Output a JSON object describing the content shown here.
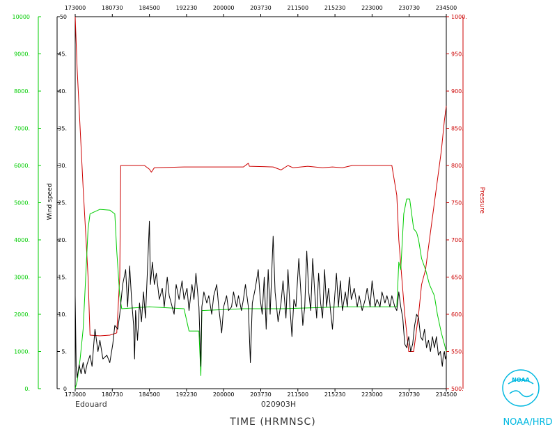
{
  "chart_data": {
    "type": "line",
    "storm": "Edouard",
    "flight_id": "020903H",
    "xlabel": "TIME (HRMNSC)",
    "x_ticks": [
      "173000",
      "180730",
      "184500",
      "192230",
      "200000",
      "203730",
      "211500",
      "215230",
      "223000",
      "230730",
      "234500"
    ],
    "xlim": [
      "17:30:00",
      "23:45:00"
    ],
    "axes": {
      "wind_speed": {
        "label": "Wind speed",
        "ylim": [
          0,
          50
        ],
        "ticks": [
          "0",
          "5.",
          "10.",
          "15.",
          "20.",
          "25.",
          "30.",
          "35.",
          "40.",
          "45.",
          "50"
        ],
        "color": "#000000"
      },
      "altitude": {
        "label": "",
        "ylim": [
          0,
          10000
        ],
        "ticks": [
          "0.",
          "1000.",
          "2000.",
          "3000.",
          "4000.",
          "5000.",
          "6000.",
          "7000.",
          "8000.",
          "9000.",
          "10000"
        ],
        "color": "#00cc00"
      },
      "pressure": {
        "label": "Pressure",
        "ylim": [
          500,
          1000
        ],
        "ticks": [
          "500.",
          "550.",
          "600.",
          "650.",
          "700.",
          "750.",
          "800.",
          "850.",
          "900.",
          "950.",
          "1000."
        ],
        "color": "#cc0000"
      }
    },
    "series": [
      {
        "axis": "pressure",
        "color": "#cc0000",
        "points": [
          [
            "17:30:00",
            1000
          ],
          [
            "17:32:00",
            930
          ],
          [
            "17:35:00",
            850
          ],
          [
            "17:38:00",
            770
          ],
          [
            "17:41:00",
            700
          ],
          [
            "17:43:00",
            650
          ],
          [
            "17:45:00",
            572
          ],
          [
            "17:55:00",
            571
          ],
          [
            "18:05:00",
            572
          ],
          [
            "18:12:00",
            575
          ],
          [
            "18:15:00",
            650
          ],
          [
            "18:16:00",
            800
          ],
          [
            "18:40:00",
            800
          ],
          [
            "18:45:00",
            795
          ],
          [
            "18:47:00",
            791
          ],
          [
            "18:50:00",
            797
          ],
          [
            "19:20:00",
            798
          ],
          [
            "20:20:00",
            798
          ],
          [
            "20:25:00",
            803
          ],
          [
            "20:26:00",
            799
          ],
          [
            "20:50:00",
            798
          ],
          [
            "20:58:00",
            794
          ],
          [
            "21:05:00",
            800
          ],
          [
            "21:10:00",
            797
          ],
          [
            "21:25:00",
            799
          ],
          [
            "21:40:00",
            797
          ],
          [
            "21:50:00",
            798
          ],
          [
            "22:00:00",
            797
          ],
          [
            "22:10:00",
            800
          ],
          [
            "22:50:00",
            800
          ],
          [
            "22:55:00",
            760
          ],
          [
            "22:57:00",
            700
          ],
          [
            "23:00:00",
            650
          ],
          [
            "23:03:00",
            600
          ],
          [
            "23:07:00",
            550
          ],
          [
            "23:12:00",
            550
          ],
          [
            "23:17:00",
            600
          ],
          [
            "23:20:00",
            640
          ],
          [
            "23:24:00",
            660
          ],
          [
            "23:28:00",
            700
          ],
          [
            "23:33:00",
            750
          ],
          [
            "23:36:00",
            780
          ],
          [
            "23:40:00",
            820
          ],
          [
            "23:43:00",
            860
          ],
          [
            "23:44:00",
            870
          ],
          [
            "23:45:00",
            880
          ]
        ]
      },
      {
        "axis": "altitude",
        "color": "#00cc00",
        "points": [
          [
            "17:30:00",
            0
          ],
          [
            "17:32:00",
            200
          ],
          [
            "17:35:00",
            800
          ],
          [
            "17:38:00",
            1600
          ],
          [
            "17:41:00",
            3200
          ],
          [
            "17:43:00",
            4300
          ],
          [
            "17:45:00",
            4700
          ],
          [
            "17:55:00",
            4820
          ],
          [
            "18:05:00",
            4800
          ],
          [
            "18:10:00",
            4700
          ],
          [
            "18:12:00",
            3700
          ],
          [
            "18:15:00",
            2500
          ],
          [
            "18:17:00",
            2150
          ],
          [
            "18:45:00",
            2200
          ],
          [
            "19:20:00",
            2150
          ],
          [
            "19:25:00",
            1550
          ],
          [
            "19:35:00",
            1550
          ],
          [
            "19:37:00",
            350
          ],
          [
            "19:38:00",
            2100
          ],
          [
            "20:20:00",
            2150
          ],
          [
            "21:00:00",
            2150
          ],
          [
            "22:00:00",
            2200
          ],
          [
            "22:55:00",
            2200
          ],
          [
            "22:57:00",
            3400
          ],
          [
            "22:59:00",
            3200
          ],
          [
            "23:02:00",
            4700
          ],
          [
            "23:05:00",
            5100
          ],
          [
            "23:08:00",
            5100
          ],
          [
            "23:12:00",
            4300
          ],
          [
            "23:15:00",
            4200
          ],
          [
            "23:17:00",
            4000
          ],
          [
            "23:20:00",
            3500
          ],
          [
            "23:24:00",
            3200
          ],
          [
            "23:28:00",
            2800
          ],
          [
            "23:33:00",
            2500
          ],
          [
            "23:36:00",
            2000
          ],
          [
            "23:40:00",
            1500
          ],
          [
            "23:43:00",
            1200
          ],
          [
            "23:45:00",
            1000
          ]
        ]
      },
      {
        "axis": "wind_speed",
        "color": "#000000",
        "points": [
          [
            "17:30:00",
            12.5
          ],
          [
            "17:31:00",
            3.0
          ],
          [
            "17:32:00",
            1.5
          ],
          [
            "17:34:00",
            3.2
          ],
          [
            "17:36:00",
            2.0
          ],
          [
            "17:38:00",
            3.5
          ],
          [
            "17:40:00",
            2.0
          ],
          [
            "17:42:00",
            3.3
          ],
          [
            "17:45:00",
            4.5
          ],
          [
            "17:47:00",
            3.0
          ],
          [
            "17:50:00",
            8.0
          ],
          [
            "17:53:00",
            5.0
          ],
          [
            "17:55:00",
            6.5
          ],
          [
            "17:58:00",
            4.0
          ],
          [
            "18:02:00",
            4.5
          ],
          [
            "18:05:00",
            3.5
          ],
          [
            "18:08:00",
            6.0
          ],
          [
            "18:10:00",
            8.5
          ],
          [
            "18:13:00",
            8.0
          ],
          [
            "18:15:00",
            10.0
          ],
          [
            "18:18:00",
            14.0
          ],
          [
            "18:21:00",
            16.0
          ],
          [
            "18:23:00",
            11.0
          ],
          [
            "18:25:00",
            16.5
          ],
          [
            "18:27:00",
            12.0
          ],
          [
            "18:29:00",
            8.5
          ],
          [
            "18:30:00",
            4.0
          ],
          [
            "18:31:00",
            10.5
          ],
          [
            "18:33:00",
            6.5
          ],
          [
            "18:35:00",
            11.5
          ],
          [
            "18:37:00",
            9.0
          ],
          [
            "18:39:00",
            13.0
          ],
          [
            "18:41:00",
            9.5
          ],
          [
            "18:43:00",
            16.0
          ],
          [
            "18:45:00",
            22.5
          ],
          [
            "18:46:00",
            14.0
          ],
          [
            "18:48:00",
            17.0
          ],
          [
            "18:50:00",
            14.0
          ],
          [
            "18:52:00",
            15.5
          ],
          [
            "18:55:00",
            12.0
          ],
          [
            "18:58:00",
            13.5
          ],
          [
            "19:00:00",
            11.0
          ],
          [
            "19:03:00",
            15.0
          ],
          [
            "19:05:00",
            12.5
          ],
          [
            "19:08:00",
            11.0
          ],
          [
            "19:10:00",
            10.0
          ],
          [
            "19:12:00",
            14.0
          ],
          [
            "19:15:00",
            12.0
          ],
          [
            "19:18:00",
            14.5
          ],
          [
            "19:20:00",
            12.0
          ],
          [
            "19:23:00",
            13.5
          ],
          [
            "19:25:00",
            10.5
          ],
          [
            "19:28:00",
            14.0
          ],
          [
            "19:30:00",
            12.0
          ],
          [
            "19:32:00",
            15.5
          ],
          [
            "19:35:00",
            11.0
          ],
          [
            "19:37:00",
            3.0
          ],
          [
            "19:38:00",
            11.0
          ],
          [
            "19:40:00",
            13.0
          ],
          [
            "19:43:00",
            11.5
          ],
          [
            "19:45:00",
            12.5
          ],
          [
            "19:48:00",
            10.0
          ],
          [
            "19:50:00",
            12.5
          ],
          [
            "19:53:00",
            14.0
          ],
          [
            "19:55:00",
            11.0
          ],
          [
            "19:58:00",
            7.5
          ],
          [
            "20:00:00",
            11.0
          ],
          [
            "20:03:00",
            12.5
          ],
          [
            "20:05:00",
            10.5
          ],
          [
            "20:08:00",
            11.0
          ],
          [
            "20:10:00",
            13.0
          ],
          [
            "20:13:00",
            11.0
          ],
          [
            "20:15:00",
            12.5
          ],
          [
            "20:18:00",
            10.5
          ],
          [
            "20:20:00",
            12.0
          ],
          [
            "20:22:00",
            14.0
          ],
          [
            "20:25:00",
            11.0
          ],
          [
            "20:27:00",
            3.5
          ],
          [
            "20:29:00",
            11.5
          ],
          [
            "20:32:00",
            13.5
          ],
          [
            "20:35:00",
            16.0
          ],
          [
            "20:37:00",
            12.0
          ],
          [
            "20:39:00",
            10.0
          ],
          [
            "20:41:00",
            15.0
          ],
          [
            "20:43:00",
            8.0
          ],
          [
            "20:45:00",
            16.0
          ],
          [
            "20:47:00",
            10.0
          ],
          [
            "20:50:00",
            20.5
          ],
          [
            "20:52:00",
            13.0
          ],
          [
            "20:55:00",
            9.0
          ],
          [
            "20:58:00",
            11.5
          ],
          [
            "21:00:00",
            14.5
          ],
          [
            "21:03:00",
            9.5
          ],
          [
            "21:05:00",
            16.0
          ],
          [
            "21:07:00",
            11.0
          ],
          [
            "21:09:00",
            7.0
          ],
          [
            "21:11:00",
            12.0
          ],
          [
            "21:13:00",
            11.0
          ],
          [
            "21:16:00",
            17.5
          ],
          [
            "21:18:00",
            13.0
          ],
          [
            "21:20:00",
            8.5
          ],
          [
            "21:22:00",
            11.0
          ],
          [
            "21:24:00",
            18.5
          ],
          [
            "21:26:00",
            13.0
          ],
          [
            "21:28:00",
            10.5
          ],
          [
            "21:30:00",
            17.5
          ],
          [
            "21:32:00",
            13.0
          ],
          [
            "21:34:00",
            9.5
          ],
          [
            "21:36:00",
            15.5
          ],
          [
            "21:38:00",
            11.5
          ],
          [
            "21:40:00",
            9.5
          ],
          [
            "21:42:00",
            16.0
          ],
          [
            "21:44:00",
            11.0
          ],
          [
            "21:46:00",
            13.5
          ],
          [
            "21:48:00",
            10.5
          ],
          [
            "21:50:00",
            8.0
          ],
          [
            "21:52:00",
            12.0
          ],
          [
            "21:54:00",
            15.5
          ],
          [
            "21:56:00",
            11.0
          ],
          [
            "21:58:00",
            14.5
          ],
          [
            "22:00:00",
            10.5
          ],
          [
            "22:03:00",
            13.0
          ],
          [
            "22:05:00",
            11.0
          ],
          [
            "22:07:00",
            15.0
          ],
          [
            "22:09:00",
            12.0
          ],
          [
            "22:12:00",
            13.5
          ],
          [
            "22:15:00",
            11.0
          ],
          [
            "22:17:00",
            12.5
          ],
          [
            "22:20:00",
            10.5
          ],
          [
            "22:23:00",
            12.0
          ],
          [
            "22:25:00",
            13.5
          ],
          [
            "22:28:00",
            11.0
          ],
          [
            "22:30:00",
            14.5
          ],
          [
            "22:33:00",
            11.0
          ],
          [
            "22:35:00",
            12.0
          ],
          [
            "22:38:00",
            11.0
          ],
          [
            "22:40:00",
            13.0
          ],
          [
            "22:43:00",
            11.5
          ],
          [
            "22:45:00",
            12.5
          ],
          [
            "22:48:00",
            11.0
          ],
          [
            "22:50:00",
            12.5
          ],
          [
            "22:53:00",
            11.0
          ],
          [
            "22:55:00",
            10.5
          ],
          [
            "22:57:00",
            13.0
          ],
          [
            "22:59:00",
            11.0
          ],
          [
            "23:01:00",
            9.5
          ],
          [
            "23:03:00",
            6.0
          ],
          [
            "23:05:00",
            5.5
          ],
          [
            "23:07:00",
            7.0
          ],
          [
            "23:09:00",
            5.0
          ],
          [
            "23:11:00",
            6.0
          ],
          [
            "23:13:00",
            8.5
          ],
          [
            "23:15:00",
            10.0
          ],
          [
            "23:17:00",
            9.5
          ],
          [
            "23:19:00",
            7.0
          ],
          [
            "23:21:00",
            6.5
          ],
          [
            "23:23:00",
            8.0
          ],
          [
            "23:25:00",
            5.5
          ],
          [
            "23:27:00",
            6.5
          ],
          [
            "23:29:00",
            5.0
          ],
          [
            "23:31:00",
            7.0
          ],
          [
            "23:33:00",
            5.5
          ],
          [
            "23:35:00",
            7.0
          ],
          [
            "23:37:00",
            4.5
          ],
          [
            "23:39:00",
            5.0
          ],
          [
            "23:41:00",
            3.0
          ],
          [
            "23:42:00",
            4.5
          ],
          [
            "23:43:00",
            5.0
          ],
          [
            "23:44:00",
            4.0
          ],
          [
            "23:45:00",
            4.5
          ]
        ]
      }
    ]
  },
  "logo": {
    "emblem_text": "NOAA",
    "caption": "NOAA/HRD",
    "color": "#00b8e0"
  }
}
